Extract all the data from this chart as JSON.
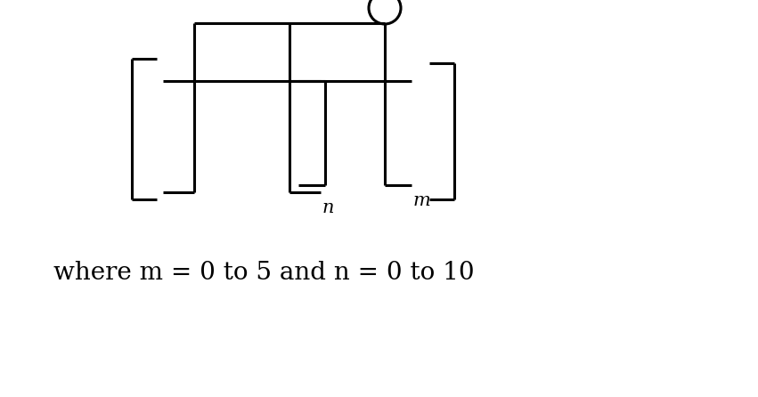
{
  "background_color": "#ffffff",
  "text_line": "where m = 0 to 5 and n = 0 to 10",
  "text_fontsize": 20,
  "text_family": "serif",
  "lw": 2.2
}
